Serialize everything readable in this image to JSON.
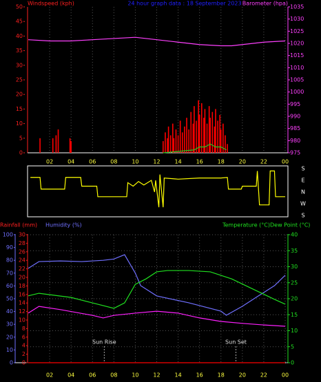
{
  "chart_data": [
    {
      "type": "bar",
      "title": "24 hour graph data : 18 September 2023",
      "y_label": "Windspeed (kph)",
      "y_color": "#ff2020",
      "y2_label": "Barometer (hpa)",
      "y2_color": "#ff40ff",
      "x_color": "#ffff40",
      "xlim": [
        0,
        24
      ],
      "xticks": [
        {
          "value": 2,
          "label": "02"
        },
        {
          "value": 4,
          "label": "04"
        },
        {
          "value": 6,
          "label": "06"
        },
        {
          "value": 8,
          "label": "08"
        },
        {
          "value": 10,
          "label": "10"
        },
        12,
        14,
        16,
        18,
        20,
        22,
        {
          "value": 24,
          "label": "00"
        }
      ],
      "ylim": [
        0,
        50
      ],
      "yticks": [
        0,
        5,
        10,
        15,
        20,
        25,
        30,
        35,
        40,
        45,
        50
      ],
      "y2lim": [
        975,
        1035
      ],
      "y2ticks": [
        975,
        980,
        985,
        990,
        995,
        1000,
        1005,
        1010,
        1015,
        1020,
        1025,
        1030,
        1035
      ],
      "grid": true,
      "series": [
        {
          "type": "bar",
          "color": "#ff0000",
          "x": [
            1.1,
            2.3,
            2.6,
            2.8,
            3.9,
            4.0,
            12.6,
            12.8,
            13.0,
            13.1,
            13.3,
            13.5,
            13.6,
            13.8,
            14.0,
            14.2,
            14.4,
            14.6,
            14.8,
            15.0,
            15.2,
            15.4,
            15.5,
            15.7,
            15.9,
            16.0,
            16.2,
            16.4,
            16.5,
            16.7,
            16.9,
            17.0,
            17.2,
            17.4,
            17.5,
            17.7,
            17.9,
            18.0,
            18.2,
            18.4,
            18.6
          ],
          "values": [
            5,
            5,
            6,
            8,
            5,
            4,
            4,
            7,
            5,
            9,
            6,
            10,
            5,
            8,
            6,
            11,
            7,
            9,
            12,
            8,
            14,
            10,
            16,
            11,
            18,
            13,
            17,
            12,
            15,
            10,
            16,
            12,
            14,
            9,
            15,
            11,
            13,
            8,
            10,
            6,
            3
          ]
        },
        {
          "type": "line",
          "color": "#20d020",
          "x": [
            12.6,
            15.5,
            16,
            16.5,
            17,
            17.5,
            18,
            18.5
          ],
          "values": [
            0,
            1,
            2,
            2,
            3,
            2,
            2,
            1
          ]
        },
        {
          "type": "line",
          "axis": "y2",
          "color": "#ff40ff",
          "x": [
            0,
            2,
            4,
            6,
            8,
            10,
            12,
            14,
            16,
            18,
            19,
            20,
            22,
            24
          ],
          "values": [
            1021.5,
            1021,
            1021,
            1021.5,
            1022,
            1022.5,
            1021.5,
            1020.5,
            1019.5,
            1019,
            1019,
            1019.5,
            1020.5,
            1021
          ]
        }
      ]
    },
    {
      "type": "line",
      "xlim": [
        0,
        24
      ],
      "ylim": [
        4,
        0
      ],
      "yticks": [
        {
          "value": 0,
          "label": "S"
        },
        {
          "value": 1,
          "label": "E"
        },
        {
          "value": 2,
          "label": "N"
        },
        {
          "value": 3,
          "label": "W"
        },
        {
          "value": 4,
          "label": "S"
        }
      ],
      "series": [
        {
          "type": "line",
          "color": "#ffff00",
          "x": [
            0.2,
            1.1,
            1.2,
            3.4,
            3.5,
            4.9,
            5.0,
            6.4,
            6.5,
            9.2,
            9.3,
            9.8,
            10.3,
            10.8,
            11.5,
            11.8,
            11.9,
            12.2,
            12.3,
            12.6,
            12.7,
            14,
            16,
            18,
            18.6,
            18.7,
            19.9,
            20.0,
            21.3,
            21.4,
            21.6,
            22.5,
            22.6,
            23.0,
            23.1,
            24
          ],
          "values": [
            0.75,
            0.75,
            1.75,
            1.75,
            0.75,
            0.75,
            1.5,
            1.5,
            2.4,
            2.4,
            1.2,
            1.5,
            1.1,
            1.4,
            1.0,
            2.0,
            1.0,
            3.3,
            0.5,
            3.3,
            0.8,
            0.9,
            0.8,
            0.8,
            0.75,
            1.75,
            1.75,
            1.5,
            1.5,
            0.2,
            3.1,
            3.1,
            0.2,
            0.2,
            2.4,
            2.4
          ]
        }
      ]
    },
    {
      "type": "line",
      "y3_label": "Rainfall (mm)",
      "y3_color": "#ff2020",
      "y_label": "Humidity (%)",
      "y_color": "#7070ff",
      "y2_label": "Temperature (°C)",
      "y2_label_b": "Dew Point (°C)",
      "y2_color": "#20e020",
      "x_color": "#ffff40",
      "xlim": [
        0,
        24
      ],
      "xticks": [
        {
          "value": 2,
          "label": "02"
        },
        {
          "value": 4,
          "label": "04"
        },
        {
          "value": 6,
          "label": "06"
        },
        {
          "value": 8,
          "label": "08"
        },
        {
          "value": 10,
          "label": "10"
        },
        12,
        14,
        16,
        18,
        20,
        22,
        {
          "value": 24,
          "label": "00"
        }
      ],
      "ylim": [
        0,
        100
      ],
      "yticks": [
        0,
        10,
        20,
        30,
        40,
        50,
        60,
        70,
        80,
        90,
        100
      ],
      "y3lim": [
        0,
        30
      ],
      "y3ticks": [
        0,
        2,
        4,
        6,
        8,
        10,
        12,
        14,
        16,
        18,
        20,
        22,
        24,
        26,
        28,
        30
      ],
      "y2lim": [
        0,
        40
      ],
      "y2ticks": [
        0,
        5,
        10,
        15,
        20,
        25,
        30,
        35,
        40
      ],
      "grid": true,
      "annotations": [
        {
          "text": "Sun Rise",
          "x": 7.1
        },
        {
          "text": "Sun Set",
          "x": 19.4
        }
      ],
      "series": [
        {
          "type": "line",
          "axis": "y3",
          "color": "#ff0000",
          "x": [
            0,
            24
          ],
          "values": [
            0,
            0
          ]
        },
        {
          "type": "line",
          "color": "#7070ff",
          "x": [
            0,
            1,
            3,
            5,
            7,
            8,
            9,
            10,
            10.5,
            12,
            15,
            18,
            18.5,
            20,
            21.5,
            23,
            24
          ],
          "values": [
            73.7,
            79,
            79.5,
            79,
            80,
            81,
            84.4,
            70,
            60.2,
            52.2,
            46.8,
            40.3,
            37.1,
            44.1,
            52.2,
            60.2,
            68.3
          ]
        },
        {
          "type": "line",
          "axis": "y2",
          "color": "#20e020",
          "x": [
            0,
            1,
            4,
            6,
            8,
            9,
            10,
            11,
            12,
            13,
            15,
            17,
            19,
            21,
            23,
            24
          ],
          "values": [
            20.9,
            21.7,
            20.4,
            18.7,
            17,
            18.7,
            24.5,
            26.2,
            28.4,
            28.8,
            28.8,
            28.4,
            26.2,
            23,
            19.8,
            18.3
          ]
        },
        {
          "type": "line",
          "axis": "y2",
          "color": "#ff20ff",
          "x": [
            0,
            1,
            3,
            6,
            7,
            8,
            10,
            12,
            14,
            16,
            18,
            20,
            22,
            24
          ],
          "values": [
            15.5,
            17.6,
            16.6,
            14.8,
            14,
            14.8,
            15.5,
            16.1,
            15.5,
            14,
            12.9,
            12.3,
            11.8,
            11.4
          ]
        }
      ]
    }
  ]
}
